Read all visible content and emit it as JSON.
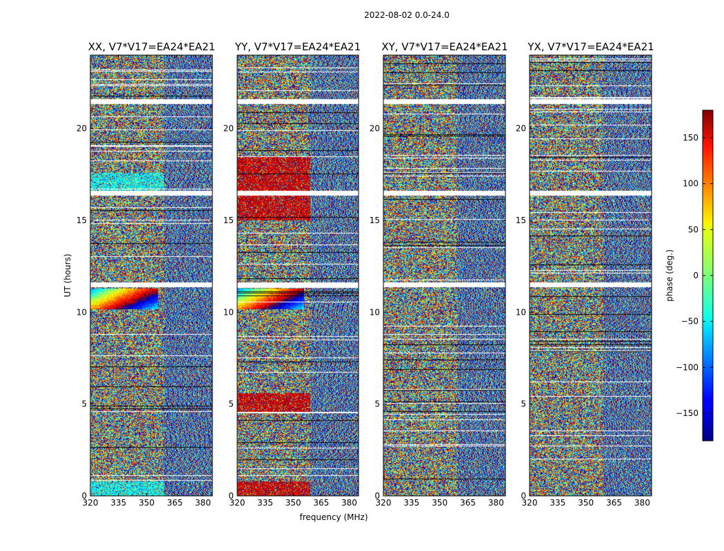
{
  "chart_data": {
    "type": "heatmap",
    "suptitle": "2022-08-02 0.0-24.0",
    "xlabel": "frequency (MHz)",
    "ylabel": "UT (hours)",
    "xlim": [
      320,
      385
    ],
    "ylim": [
      0,
      24
    ],
    "xticks": [
      "320",
      "335",
      "350",
      "365",
      "380"
    ],
    "yticks": [
      "0",
      "5",
      "10",
      "15",
      "20"
    ],
    "panels": [
      {
        "title": "XX, V7*V17=EA24*EA21",
        "pol": "XX"
      },
      {
        "title": "YY, V7*V17=EA24*EA21",
        "pol": "YY"
      },
      {
        "title": "XY, V7*V17=EA24*EA21",
        "pol": "XY"
      },
      {
        "title": "YX, V7*V17=EA24*EA21",
        "pol": "YX"
      }
    ],
    "colorbar": {
      "label": "phase (deg.)",
      "range": [
        -180,
        180
      ],
      "ticks": [
        "150",
        "100",
        "50",
        "0",
        "−50",
        "−100",
        "−150"
      ],
      "tick_values": [
        150,
        100,
        50,
        0,
        -50,
        -100,
        -150
      ],
      "colormap": "jet"
    },
    "gap_hours": [
      11.5,
      16.5,
      21.5
    ]
  }
}
